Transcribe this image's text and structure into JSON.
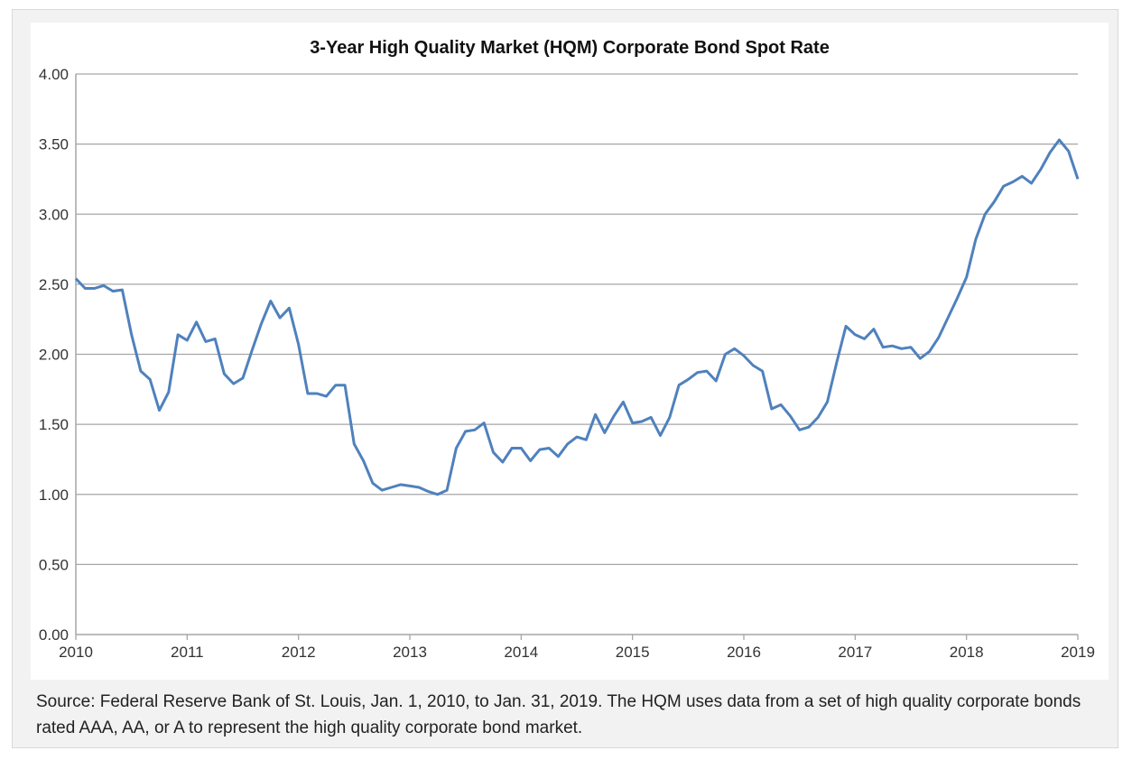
{
  "chart_data": {
    "type": "line",
    "title": "3-Year High Quality Market (HQM) Corporate Bond Spot Rate",
    "xlabel": "",
    "ylabel": "",
    "ylim": [
      0,
      4
    ],
    "yticks": [
      "0.00",
      "0.50",
      "1.00",
      "1.50",
      "2.00",
      "2.50",
      "3.00",
      "3.50",
      "4.00"
    ],
    "xticks": [
      "2010",
      "2011",
      "2012",
      "2013",
      "2014",
      "2015",
      "2016",
      "2017",
      "2018",
      "2019"
    ],
    "xlim": [
      "2010-01",
      "2019-01"
    ],
    "grid": "horizontal",
    "line_color": "#4f81bd",
    "series": [
      {
        "x": [
          "2010-01",
          "2010-02",
          "2010-03",
          "2010-04",
          "2010-05",
          "2010-06",
          "2010-07",
          "2010-08",
          "2010-09",
          "2010-10",
          "2010-11",
          "2010-12",
          "2011-01",
          "2011-02",
          "2011-03",
          "2011-04",
          "2011-05",
          "2011-06",
          "2011-07",
          "2011-08",
          "2011-09",
          "2011-10",
          "2011-11",
          "2011-12",
          "2012-01",
          "2012-02",
          "2012-03",
          "2012-04",
          "2012-05",
          "2012-06",
          "2012-07",
          "2012-08",
          "2012-09",
          "2012-10",
          "2012-11",
          "2012-12",
          "2013-01",
          "2013-02",
          "2013-03",
          "2013-04",
          "2013-05",
          "2013-06",
          "2013-07",
          "2013-08",
          "2013-09",
          "2013-10",
          "2013-11",
          "2013-12",
          "2014-01",
          "2014-02",
          "2014-03",
          "2014-04",
          "2014-05",
          "2014-06",
          "2014-07",
          "2014-08",
          "2014-09",
          "2014-10",
          "2014-11",
          "2014-12",
          "2015-01",
          "2015-02",
          "2015-03",
          "2015-04",
          "2015-05",
          "2015-06",
          "2015-07",
          "2015-08",
          "2015-09",
          "2015-10",
          "2015-11",
          "2015-12",
          "2016-01",
          "2016-02",
          "2016-03",
          "2016-04",
          "2016-05",
          "2016-06",
          "2016-07",
          "2016-08",
          "2016-09",
          "2016-10",
          "2016-11",
          "2016-12",
          "2017-01",
          "2017-02",
          "2017-03",
          "2017-04",
          "2017-05",
          "2017-06",
          "2017-07",
          "2017-08",
          "2017-09",
          "2017-10",
          "2017-11",
          "2017-12",
          "2018-01",
          "2018-02",
          "2018-03",
          "2018-04",
          "2018-05",
          "2018-06",
          "2018-07",
          "2018-08",
          "2018-09",
          "2018-10",
          "2018-11",
          "2018-12",
          "2019-01"
        ],
        "values": [
          2.54,
          2.47,
          2.47,
          2.49,
          2.45,
          2.46,
          2.14,
          1.88,
          1.82,
          1.6,
          1.73,
          2.14,
          2.1,
          2.23,
          2.09,
          2.11,
          1.86,
          1.79,
          1.83,
          2.03,
          2.22,
          2.38,
          2.26,
          2.33,
          2.07,
          1.72,
          1.72,
          1.7,
          1.78,
          1.78,
          1.36,
          1.24,
          1.08,
          1.03,
          1.05,
          1.07,
          1.06,
          1.05,
          1.02,
          1.0,
          1.03,
          1.33,
          1.45,
          1.46,
          1.51,
          1.3,
          1.23,
          1.33,
          1.33,
          1.24,
          1.32,
          1.33,
          1.27,
          1.36,
          1.41,
          1.39,
          1.57,
          1.44,
          1.56,
          1.66,
          1.51,
          1.52,
          1.55,
          1.42,
          1.55,
          1.78,
          1.82,
          1.87,
          1.88,
          1.81,
          2.0,
          2.04,
          1.99,
          1.92,
          1.88,
          1.61,
          1.64,
          1.56,
          1.46,
          1.48,
          1.55,
          1.66,
          1.94,
          2.2,
          2.14,
          2.11,
          2.18,
          2.05,
          2.06,
          2.04,
          2.05,
          1.97,
          2.02,
          2.12,
          2.26,
          2.4,
          2.55,
          2.82,
          3.0,
          3.09,
          3.2,
          3.23,
          3.27,
          3.22,
          3.32,
          3.44,
          3.53,
          3.45,
          3.25
        ]
      }
    ]
  },
  "caption": "Source: Federal Reserve Bank of St. Louis, Jan. 1, 2010, to Jan. 31, 2019. The HQM uses data from a set of high quality corporate bonds rated AAA, AA, or A to represent the high quality corporate bond market."
}
